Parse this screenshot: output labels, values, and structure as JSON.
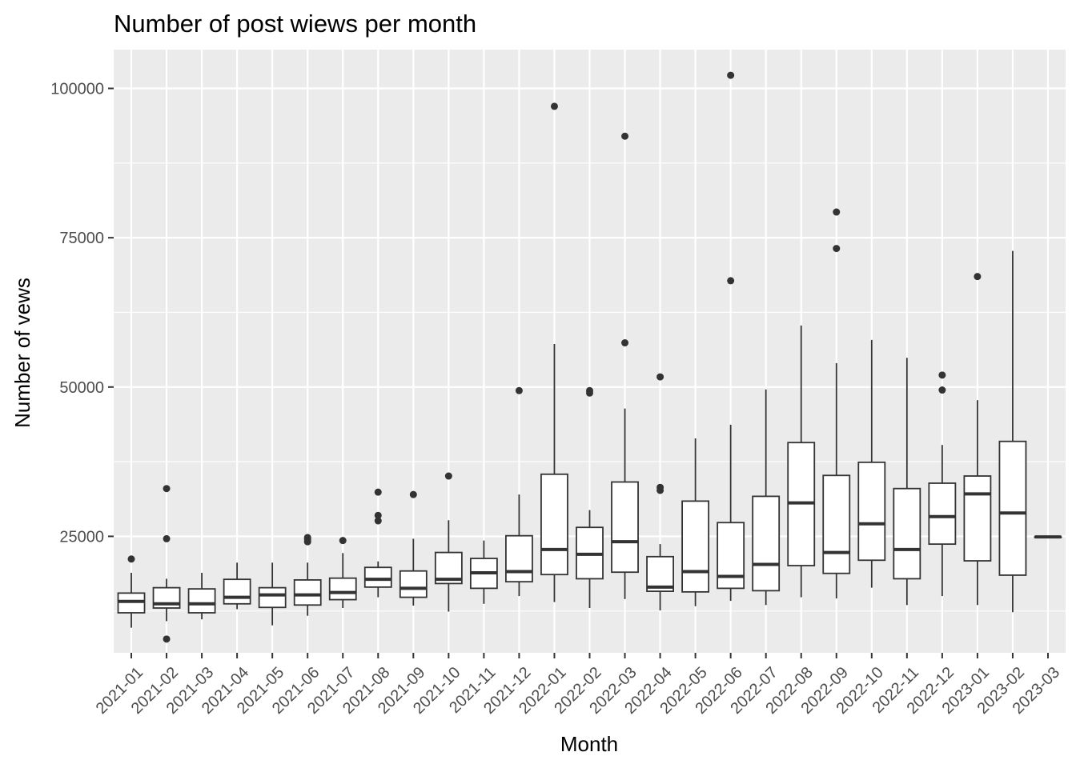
{
  "chart_data": {
    "type": "boxplot",
    "title": "Number of post wiews per month",
    "xlabel": "Month",
    "ylabel": "Number of vews",
    "ylim": [
      5500,
      106500
    ],
    "yticks": [
      25000,
      50000,
      75000,
      100000
    ],
    "ytick_labels": [
      "25000",
      "50000",
      "75000",
      "100000"
    ],
    "grid": true,
    "categories": [
      "2021-01",
      "2021-02",
      "2021-03",
      "2021-04",
      "2021-05",
      "2021-06",
      "2021-07",
      "2021-08",
      "2021-09",
      "2021-10",
      "2021-11",
      "2021-12",
      "2022-01",
      "2022-02",
      "2022-03",
      "2022-04",
      "2022-05",
      "2022-06",
      "2022-07",
      "2022-08",
      "2022-09",
      "2022-10",
      "2022-11",
      "2022-12",
      "2023-01",
      "2023-02",
      "2023-03"
    ],
    "boxes": [
      {
        "whisker_low": 9700,
        "q1": 12200,
        "median": 14100,
        "q3": 15500,
        "whisker_high": 18900,
        "outliers": [
          21200
        ]
      },
      {
        "whisker_low": 10800,
        "q1": 13000,
        "median": 13700,
        "q3": 16400,
        "whisker_high": 17900,
        "outliers": [
          33000,
          24600,
          7800
        ]
      },
      {
        "whisker_low": 11100,
        "q1": 12200,
        "median": 13700,
        "q3": 16200,
        "whisker_high": 18900,
        "outliers": []
      },
      {
        "whisker_low": 12800,
        "q1": 13700,
        "median": 14800,
        "q3": 17800,
        "whisker_high": 20600,
        "outliers": []
      },
      {
        "whisker_low": 10100,
        "q1": 13100,
        "median": 15200,
        "q3": 16400,
        "whisker_high": 20600,
        "outliers": []
      },
      {
        "whisker_low": 11700,
        "q1": 13500,
        "median": 15200,
        "q3": 17700,
        "whisker_high": 20600,
        "outliers": [
          24800,
          24500,
          24100
        ]
      },
      {
        "whisker_low": 13000,
        "q1": 14400,
        "median": 15600,
        "q3": 18000,
        "whisker_high": 22200,
        "outliers": [
          24300
        ]
      },
      {
        "whisker_low": 14800,
        "q1": 16500,
        "median": 17800,
        "q3": 19800,
        "whisker_high": 20800,
        "outliers": [
          32400,
          28500,
          27600
        ]
      },
      {
        "whisker_low": 13400,
        "q1": 14800,
        "median": 16300,
        "q3": 19200,
        "whisker_high": 24600,
        "outliers": [
          32000
        ]
      },
      {
        "whisker_low": 12400,
        "q1": 17100,
        "median": 17800,
        "q3": 22300,
        "whisker_high": 27700,
        "outliers": [
          35100
        ]
      },
      {
        "whisker_low": 13700,
        "q1": 16300,
        "median": 18900,
        "q3": 21300,
        "whisker_high": 24300,
        "outliers": []
      },
      {
        "whisker_low": 15000,
        "q1": 17400,
        "median": 19100,
        "q3": 25100,
        "whisker_high": 32000,
        "outliers": [
          49400
        ]
      },
      {
        "whisker_low": 14000,
        "q1": 18600,
        "median": 22800,
        "q3": 35400,
        "whisker_high": 57200,
        "outliers": [
          97000
        ]
      },
      {
        "whisker_low": 13000,
        "q1": 17900,
        "median": 22000,
        "q3": 26500,
        "whisker_high": 29400,
        "outliers": [
          49400,
          49000
        ]
      },
      {
        "whisker_low": 14500,
        "q1": 19000,
        "median": 24100,
        "q3": 34100,
        "whisker_high": 46400,
        "outliers": [
          92000,
          57400
        ]
      },
      {
        "whisker_low": 12600,
        "q1": 15800,
        "median": 16500,
        "q3": 21600,
        "whisker_high": 23700,
        "outliers": [
          51700,
          33200,
          32700
        ]
      },
      {
        "whisker_low": 13300,
        "q1": 15700,
        "median": 19100,
        "q3": 30900,
        "whisker_high": 41400,
        "outliers": []
      },
      {
        "whisker_low": 14200,
        "q1": 16300,
        "median": 18300,
        "q3": 27300,
        "whisker_high": 43700,
        "outliers": [
          102200,
          67800
        ]
      },
      {
        "whisker_low": 13500,
        "q1": 15900,
        "median": 20300,
        "q3": 31700,
        "whisker_high": 49600,
        "outliers": []
      },
      {
        "whisker_low": 14800,
        "q1": 20100,
        "median": 30600,
        "q3": 40700,
        "whisker_high": 60300,
        "outliers": []
      },
      {
        "whisker_low": 14600,
        "q1": 18800,
        "median": 22300,
        "q3": 35200,
        "whisker_high": 54000,
        "outliers": [
          79300,
          73200
        ]
      },
      {
        "whisker_low": 16400,
        "q1": 21000,
        "median": 27100,
        "q3": 37400,
        "whisker_high": 57900,
        "outliers": []
      },
      {
        "whisker_low": 13500,
        "q1": 17900,
        "median": 22800,
        "q3": 33000,
        "whisker_high": 54900,
        "outliers": []
      },
      {
        "whisker_low": 15000,
        "q1": 23700,
        "median": 28300,
        "q3": 33900,
        "whisker_high": 40300,
        "outliers": [
          52000,
          49500
        ]
      },
      {
        "whisker_low": 13500,
        "q1": 20900,
        "median": 32100,
        "q3": 35100,
        "whisker_high": 47800,
        "outliers": [
          68500
        ]
      },
      {
        "whisker_low": 12300,
        "q1": 18500,
        "median": 28900,
        "q3": 40900,
        "whisker_high": 72800,
        "outliers": []
      },
      {
        "whisker_low": 24900,
        "q1": 24900,
        "median": 24900,
        "q3": 24900,
        "whisker_high": 24900,
        "outliers": []
      }
    ],
    "colors": {
      "panel_background": "#ebebeb",
      "grid_major": "#ffffff",
      "box_fill": "#ffffff",
      "box_line": "#333333",
      "outlier": "#333333",
      "tick_label": "#4d4d4d"
    }
  }
}
